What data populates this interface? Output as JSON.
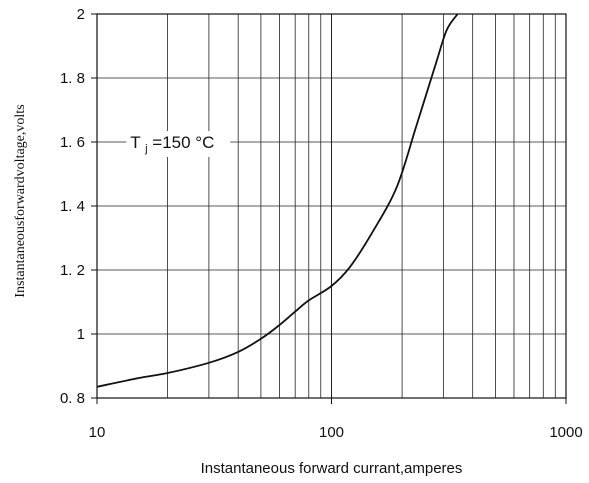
{
  "chart_data": {
    "type": "line",
    "xscale": "log",
    "xlim": [
      10,
      1000
    ],
    "ylim": [
      0.8,
      2.0
    ],
    "xlabel": "Instantaneous forward currant,amperes",
    "ylabel": "Instantaneousforwardvoltage,volts",
    "grid": true,
    "x_ticks": [
      10,
      100,
      1000
    ],
    "x_tick_labels": [
      "10",
      "100",
      "1000"
    ],
    "y_ticks": [
      0.8,
      1.0,
      1.2,
      1.4,
      1.6,
      1.8,
      2.0
    ],
    "y_tick_labels": [
      "0. 8",
      "1",
      "1. 2",
      "1. 4",
      "1. 6",
      "1. 8",
      "2"
    ],
    "annotation": {
      "main": "T",
      "subscript": "j",
      "value": "=150 °C"
    },
    "series": [
      {
        "x": [
          10,
          15,
          20,
          30,
          40,
          50,
          60,
          70,
          80,
          100,
          120,
          150,
          190,
          230,
          280,
          310,
          345
        ],
        "y": [
          0.835,
          0.862,
          0.878,
          0.91,
          0.944,
          0.985,
          1.028,
          1.07,
          1.105,
          1.15,
          1.21,
          1.32,
          1.46,
          1.65,
          1.85,
          1.95,
          2.0
        ]
      }
    ],
    "colors": {
      "line": "#111111",
      "grid": "#222222",
      "background": "#ffffff"
    }
  }
}
